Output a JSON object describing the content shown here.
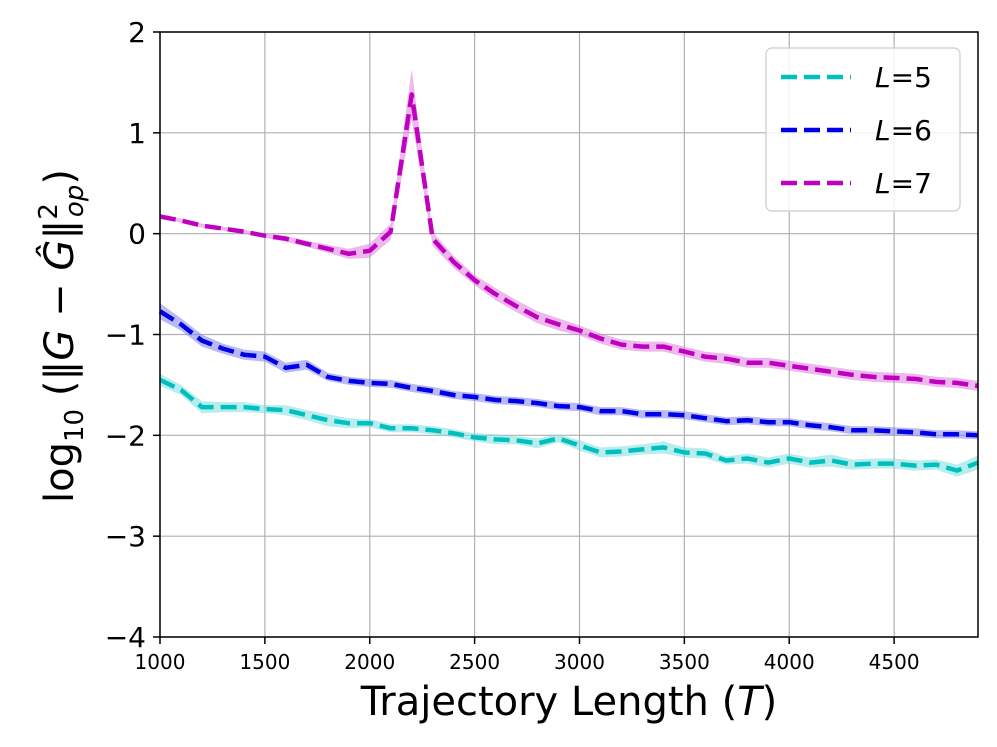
{
  "chart_data": {
    "type": "line",
    "xlabel": "Trajectory Length (T)",
    "ylabel": "log10(||G - Ĝ||op²)",
    "xlim": [
      1000,
      4900
    ],
    "ylim": [
      -4,
      2
    ],
    "xticks": [
      1000,
      1500,
      2000,
      2500,
      3000,
      3500,
      4000,
      4500
    ],
    "yticks": [
      -4,
      -3,
      -2,
      -1,
      0,
      1,
      2
    ],
    "ytick_labels": [
      "−4",
      "−3",
      "−2",
      "−1",
      "0",
      "1",
      "2"
    ],
    "grid": true,
    "legend_position": "top-right",
    "x": [
      1000,
      1100,
      1200,
      1300,
      1400,
      1500,
      1600,
      1700,
      1800,
      1900,
      2000,
      2100,
      2200,
      2300,
      2400,
      2500,
      2600,
      2700,
      2800,
      2900,
      3000,
      3100,
      3200,
      3300,
      3400,
      3500,
      3600,
      3700,
      3800,
      3900,
      4000,
      4100,
      4200,
      4300,
      4400,
      4500,
      4600,
      4700,
      4800,
      4900
    ],
    "series": [
      {
        "name": "L=5",
        "legend_var": "L",
        "legend_value": "=5",
        "color": "#00bfbf",
        "band_color": "#7fdfdf",
        "values": [
          -1.45,
          -1.55,
          -1.72,
          -1.72,
          -1.72,
          -1.74,
          -1.75,
          -1.8,
          -1.85,
          -1.88,
          -1.88,
          -1.93,
          -1.93,
          -1.95,
          -1.98,
          -2.02,
          -2.04,
          -2.05,
          -2.08,
          -2.03,
          -2.1,
          -2.17,
          -2.16,
          -2.14,
          -2.12,
          -2.17,
          -2.18,
          -2.25,
          -2.23,
          -2.27,
          -2.23,
          -2.27,
          -2.25,
          -2.29,
          -2.28,
          -2.28,
          -2.3,
          -2.29,
          -2.35,
          -2.27
        ],
        "band": [
          0.06,
          0.05,
          0.06,
          0.05,
          0.05,
          0.04,
          0.05,
          0.05,
          0.06,
          0.05,
          0.04,
          0.04,
          0.04,
          0.04,
          0.04,
          0.04,
          0.05,
          0.04,
          0.05,
          0.04,
          0.05,
          0.05,
          0.05,
          0.05,
          0.06,
          0.05,
          0.05,
          0.04,
          0.05,
          0.05,
          0.05,
          0.05,
          0.06,
          0.05,
          0.05,
          0.05,
          0.05,
          0.05,
          0.06,
          0.07
        ]
      },
      {
        "name": "L=6",
        "legend_var": "L",
        "legend_value": "=6",
        "color": "#0000e6",
        "band_color": "#8080f0",
        "values": [
          -0.77,
          -0.9,
          -1.06,
          -1.14,
          -1.2,
          -1.22,
          -1.33,
          -1.3,
          -1.42,
          -1.46,
          -1.48,
          -1.49,
          -1.53,
          -1.56,
          -1.6,
          -1.62,
          -1.65,
          -1.66,
          -1.68,
          -1.71,
          -1.72,
          -1.76,
          -1.76,
          -1.79,
          -1.79,
          -1.8,
          -1.83,
          -1.86,
          -1.85,
          -1.87,
          -1.87,
          -1.9,
          -1.92,
          -1.95,
          -1.95,
          -1.96,
          -1.97,
          -1.99,
          -1.99,
          -2.0
        ],
        "band": [
          0.08,
          0.06,
          0.06,
          0.05,
          0.05,
          0.05,
          0.05,
          0.05,
          0.04,
          0.04,
          0.04,
          0.04,
          0.04,
          0.04,
          0.04,
          0.04,
          0.04,
          0.04,
          0.04,
          0.04,
          0.04,
          0.04,
          0.04,
          0.04,
          0.04,
          0.04,
          0.04,
          0.04,
          0.04,
          0.04,
          0.04,
          0.04,
          0.04,
          0.04,
          0.04,
          0.04,
          0.04,
          0.04,
          0.04,
          0.04
        ]
      },
      {
        "name": "L=7",
        "legend_var": "L",
        "legend_value": "=7",
        "color": "#bf00bf",
        "band_color": "#df80df",
        "values": [
          0.17,
          0.13,
          0.08,
          0.05,
          0.02,
          -0.02,
          -0.05,
          -0.1,
          -0.15,
          -0.2,
          -0.17,
          0.02,
          1.38,
          -0.05,
          -0.28,
          -0.46,
          -0.6,
          -0.72,
          -0.83,
          -0.9,
          -0.96,
          -1.04,
          -1.1,
          -1.12,
          -1.12,
          -1.17,
          -1.22,
          -1.24,
          -1.28,
          -1.28,
          -1.31,
          -1.34,
          -1.37,
          -1.4,
          -1.42,
          -1.43,
          -1.44,
          -1.47,
          -1.48,
          -1.51
        ],
        "band": [
          0.02,
          0.02,
          0.02,
          0.02,
          0.02,
          0.02,
          0.03,
          0.03,
          0.04,
          0.05,
          0.07,
          0.08,
          0.25,
          0.07,
          0.06,
          0.05,
          0.06,
          0.06,
          0.06,
          0.06,
          0.05,
          0.05,
          0.05,
          0.05,
          0.05,
          0.05,
          0.05,
          0.05,
          0.05,
          0.05,
          0.05,
          0.05,
          0.05,
          0.05,
          0.05,
          0.05,
          0.05,
          0.05,
          0.05,
          0.05
        ]
      }
    ]
  }
}
